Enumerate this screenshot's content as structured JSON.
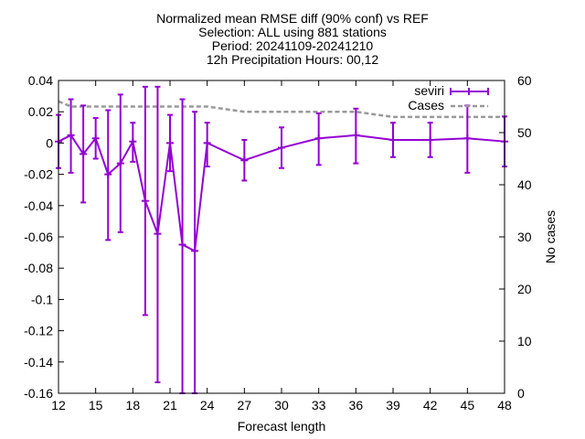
{
  "chart_data": {
    "type": "line",
    "title_lines": [
      "Normalized mean RMSE diff (90% conf) vs REF",
      "Selection: ALL using   881 stations",
      "Period: 20241109-20241210",
      "12h Precipitation   Hours: 00,12"
    ],
    "xlabel": "Forecast length",
    "y2label": "No cases",
    "xlim": [
      12,
      48
    ],
    "ylim": [
      -0.16,
      0.04
    ],
    "y2lim": [
      0,
      60
    ],
    "x_ticks": [
      "12",
      "15",
      "18",
      "21",
      "24",
      "27",
      "30",
      "33",
      "36",
      "39",
      "42",
      "45",
      "48"
    ],
    "y_ticks": [
      "0.04",
      "0.02",
      "0",
      "-0.02",
      "-0.04",
      "-0.06",
      "-0.08",
      "-0.1",
      "-0.12",
      "-0.14",
      "-0.16"
    ],
    "y2_ticks": [
      "60",
      "50",
      "40",
      "30",
      "20",
      "10",
      "0"
    ],
    "legend_position": "top-right",
    "grid": false,
    "series": [
      {
        "name": "seviri",
        "color": "#9400d3",
        "x": [
          12,
          13,
          14,
          15,
          16,
          17,
          18,
          19,
          20,
          21,
          22,
          23,
          24,
          27,
          30,
          33,
          36,
          39,
          42,
          45,
          48
        ],
        "y": [
          0.001,
          0.005,
          -0.007,
          0.003,
          -0.02,
          -0.013,
          0.001,
          -0.037,
          -0.058,
          0.0,
          -0.065,
          -0.069,
          0.0,
          -0.011,
          -0.003,
          0.003,
          0.005,
          0.002,
          0.002,
          0.003,
          0.001
        ],
        "err_low": [
          -0.016,
          -0.019,
          -0.038,
          -0.01,
          -0.062,
          -0.057,
          -0.012,
          -0.11,
          -0.153,
          -0.018,
          -0.16,
          -0.16,
          -0.015,
          -0.024,
          -0.016,
          -0.014,
          -0.013,
          -0.009,
          -0.009,
          -0.019,
          -0.015
        ],
        "err_high": [
          0.018,
          0.028,
          0.024,
          0.016,
          0.021,
          0.031,
          0.013,
          0.036,
          0.036,
          0.018,
          0.028,
          0.02,
          0.013,
          0.002,
          0.01,
          0.019,
          0.022,
          0.013,
          0.013,
          0.024,
          0.017
        ]
      },
      {
        "name": "Cases",
        "color": "#999999",
        "axis": "y2",
        "x": [
          12,
          13,
          14,
          15,
          16,
          17,
          18,
          19,
          20,
          21,
          22,
          23,
          24,
          27,
          30,
          33,
          36,
          39,
          42,
          45,
          48
        ],
        "y": [
          56,
          55,
          55,
          55,
          55,
          55,
          55,
          55,
          55,
          55,
          55,
          55,
          55,
          54,
          54,
          54,
          54,
          53,
          53,
          53,
          53
        ]
      }
    ]
  }
}
